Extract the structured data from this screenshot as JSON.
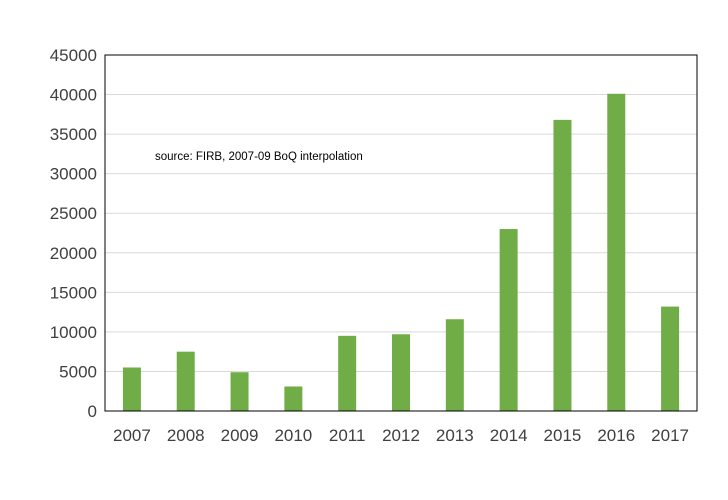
{
  "chart_data": {
    "type": "bar",
    "title": "",
    "xlabel": "",
    "ylabel": "",
    "annotation": "source:  FIRB, 2007-09 BoQ interpolation",
    "categories": [
      "2007",
      "2008",
      "2009",
      "2010",
      "2011",
      "2012",
      "2013",
      "2014",
      "2015",
      "2016",
      "2017"
    ],
    "series": [
      {
        "values": [
          5500,
          7500,
          4900,
          3100,
          9500,
          9700,
          11600,
          23000,
          36800,
          40100,
          13200
        ]
      }
    ],
    "ylim": [
      0,
      45000
    ],
    "yticks": [
      "0",
      "5000",
      "10000",
      "15000",
      "20000",
      "25000",
      "30000",
      "35000",
      "40000",
      "45000"
    ],
    "grid": true,
    "legend": "none",
    "colors": {
      "bar": "#70ad47",
      "grid": "#d9d9d9",
      "frame": "#000000"
    }
  }
}
